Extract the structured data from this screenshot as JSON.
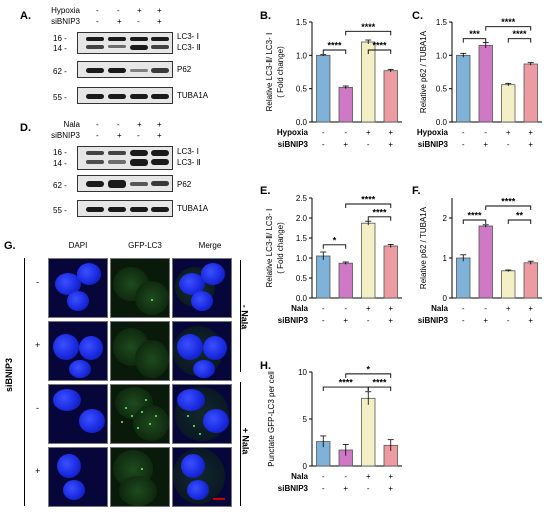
{
  "panels": {
    "A": "A.",
    "B": "B.",
    "C": "C.",
    "D": "D.",
    "E": "E.",
    "F": "F.",
    "G": "G.",
    "H": "H."
  },
  "blot_top": {
    "row1_label": "Hypoxia",
    "row2_label": "siBNIP3",
    "row1_signs": [
      "-",
      "-",
      "+",
      "+"
    ],
    "row2_signs": [
      "-",
      "+",
      "-",
      "+"
    ],
    "mw": [
      "16 -",
      "14 -",
      "62 -",
      "55 -"
    ],
    "bands": [
      "LC3- Ⅰ",
      "LC3- Ⅱ",
      "P62",
      "TUBA1A"
    ]
  },
  "blot_bottom": {
    "row1_label": "Nala",
    "row2_label": "siBNIP3",
    "row1_signs": [
      "-",
      "-",
      "+",
      "+"
    ],
    "row2_signs": [
      "-",
      "+",
      "-",
      "+"
    ],
    "mw": [
      "16 -",
      "14 -",
      "62 -",
      "55 -"
    ],
    "bands": [
      "LC3- Ⅰ",
      "LC3- Ⅱ",
      "P62",
      "TUBA1A"
    ]
  },
  "micro": {
    "columns": [
      "DAPI",
      "GFP-LC3",
      "Merge"
    ],
    "row_signs": [
      "-",
      "+",
      "-",
      "+"
    ],
    "side_label": "siBNIP3",
    "group1": "- Nala",
    "group2": "+ Nala"
  },
  "colors": {
    "c1": "#7fb2d9",
    "c2": "#cf79c6",
    "c3": "#f4efc4",
    "c4": "#eb9ba1"
  },
  "chart_data": [
    {
      "id": "B",
      "type": "bar",
      "ylabel": "Relative LC3-Ⅱ/ LC3- Ⅰ",
      "ylabel2": "( Fold change)",
      "ylim": [
        0,
        1.5
      ],
      "yticks": [
        "0.0",
        "0.5",
        "1.0",
        "1.5"
      ],
      "values": [
        1.0,
        0.52,
        1.2,
        0.77
      ],
      "errors": [
        0.01,
        0.02,
        0.03,
        0.02
      ],
      "row1_label": "Hypoxia",
      "row2_label": "siBNIP3",
      "row1_signs": [
        "-",
        "-",
        "+",
        "+"
      ],
      "row2_signs": [
        "-",
        "+",
        "-",
        "+"
      ],
      "sig": [
        {
          "text": "****",
          "a": 0,
          "b": 1,
          "y": 1.08
        },
        {
          "text": "****",
          "a": 2,
          "b": 3,
          "y": 1.08
        },
        {
          "text": "****",
          "a": 1,
          "b": 3,
          "y": 1.36
        }
      ]
    },
    {
      "id": "C",
      "type": "bar",
      "ylabel": "Relative p62 / TUBA1A",
      "ylabel2": "",
      "ylim": [
        0,
        1.5
      ],
      "yticks": [
        "0.0",
        "0.5",
        "1.0",
        "1.5"
      ],
      "values": [
        1.0,
        1.15,
        0.56,
        0.87
      ],
      "errors": [
        0.03,
        0.04,
        0.02,
        0.02
      ],
      "row1_label": "Hypoxia",
      "row2_label": "siBNIP3",
      "row1_signs": [
        "-",
        "-",
        "+",
        "+"
      ],
      "row2_signs": [
        "-",
        "+",
        "-",
        "+"
      ],
      "sig": [
        {
          "text": "***",
          "a": 0,
          "b": 1,
          "y": 1.25
        },
        {
          "text": "****",
          "a": 2,
          "b": 3,
          "y": 1.25
        },
        {
          "text": "****",
          "a": 1,
          "b": 3,
          "y": 1.43
        }
      ]
    },
    {
      "id": "E",
      "type": "bar",
      "ylabel": "Relative LC3-Ⅱ/ LC3- Ⅰ",
      "ylabel2": "( Fold change)",
      "ylim": [
        0,
        2.5
      ],
      "yticks": [
        "0.0",
        "0.5",
        "1.0",
        "1.5",
        "2.0",
        "2.5"
      ],
      "values": [
        1.05,
        0.87,
        1.87,
        1.3
      ],
      "errors": [
        0.1,
        0.03,
        0.05,
        0.04
      ],
      "row1_label": "Nala",
      "row2_label": "siBNIP3",
      "row1_signs": [
        "-",
        "-",
        "+",
        "+"
      ],
      "row2_signs": [
        "-",
        "+",
        "-",
        "+"
      ],
      "sig": [
        {
          "text": "*",
          "a": 0,
          "b": 1,
          "y": 1.33
        },
        {
          "text": "****",
          "a": 2,
          "b": 3,
          "y": 2.03
        },
        {
          "text": "****",
          "a": 1,
          "b": 3,
          "y": 2.35
        }
      ]
    },
    {
      "id": "F",
      "type": "bar",
      "ylabel": "Relative p62 / TUBA1A",
      "ylabel2": "",
      "ylim": [
        0,
        2.5
      ],
      "yticks": [
        "0",
        "1",
        "2"
      ],
      "values": [
        1.0,
        1.8,
        0.68,
        0.88
      ],
      "errors": [
        0.08,
        0.03,
        0.02,
        0.04
      ],
      "row1_label": "Nala",
      "row2_label": "siBNIP3",
      "row1_signs": [
        "-",
        "-",
        "+",
        "+"
      ],
      "row2_signs": [
        "-",
        "+",
        "-",
        "+"
      ],
      "sig": [
        {
          "text": "****",
          "a": 0,
          "b": 1,
          "y": 1.95
        },
        {
          "text": "**",
          "a": 2,
          "b": 3,
          "y": 1.95
        },
        {
          "text": "****",
          "a": 1,
          "b": 3,
          "y": 2.3
        }
      ]
    },
    {
      "id": "H",
      "type": "bar",
      "ylabel": "Punctate GFP-LC3 per cell",
      "ylabel2": "",
      "ylim": [
        0,
        10
      ],
      "yticks": [
        "0",
        "5",
        "10"
      ],
      "values": [
        2.6,
        1.7,
        7.2,
        2.2
      ],
      "errors": [
        0.6,
        0.6,
        0.7,
        0.6
      ],
      "row1_label": "Nala",
      "row2_label": "siBNIP3",
      "row1_signs": [
        "-",
        "-",
        "+",
        "+"
      ],
      "row2_signs": [
        "-",
        "+",
        "-",
        "+"
      ],
      "sig": [
        {
          "text": "****",
          "a": 0,
          "b": 2,
          "y": 8.4
        },
        {
          "text": "****",
          "a": 2,
          "b": 3,
          "y": 8.4
        },
        {
          "text": "*",
          "a": 1,
          "b": 3,
          "y": 9.8
        }
      ]
    }
  ]
}
